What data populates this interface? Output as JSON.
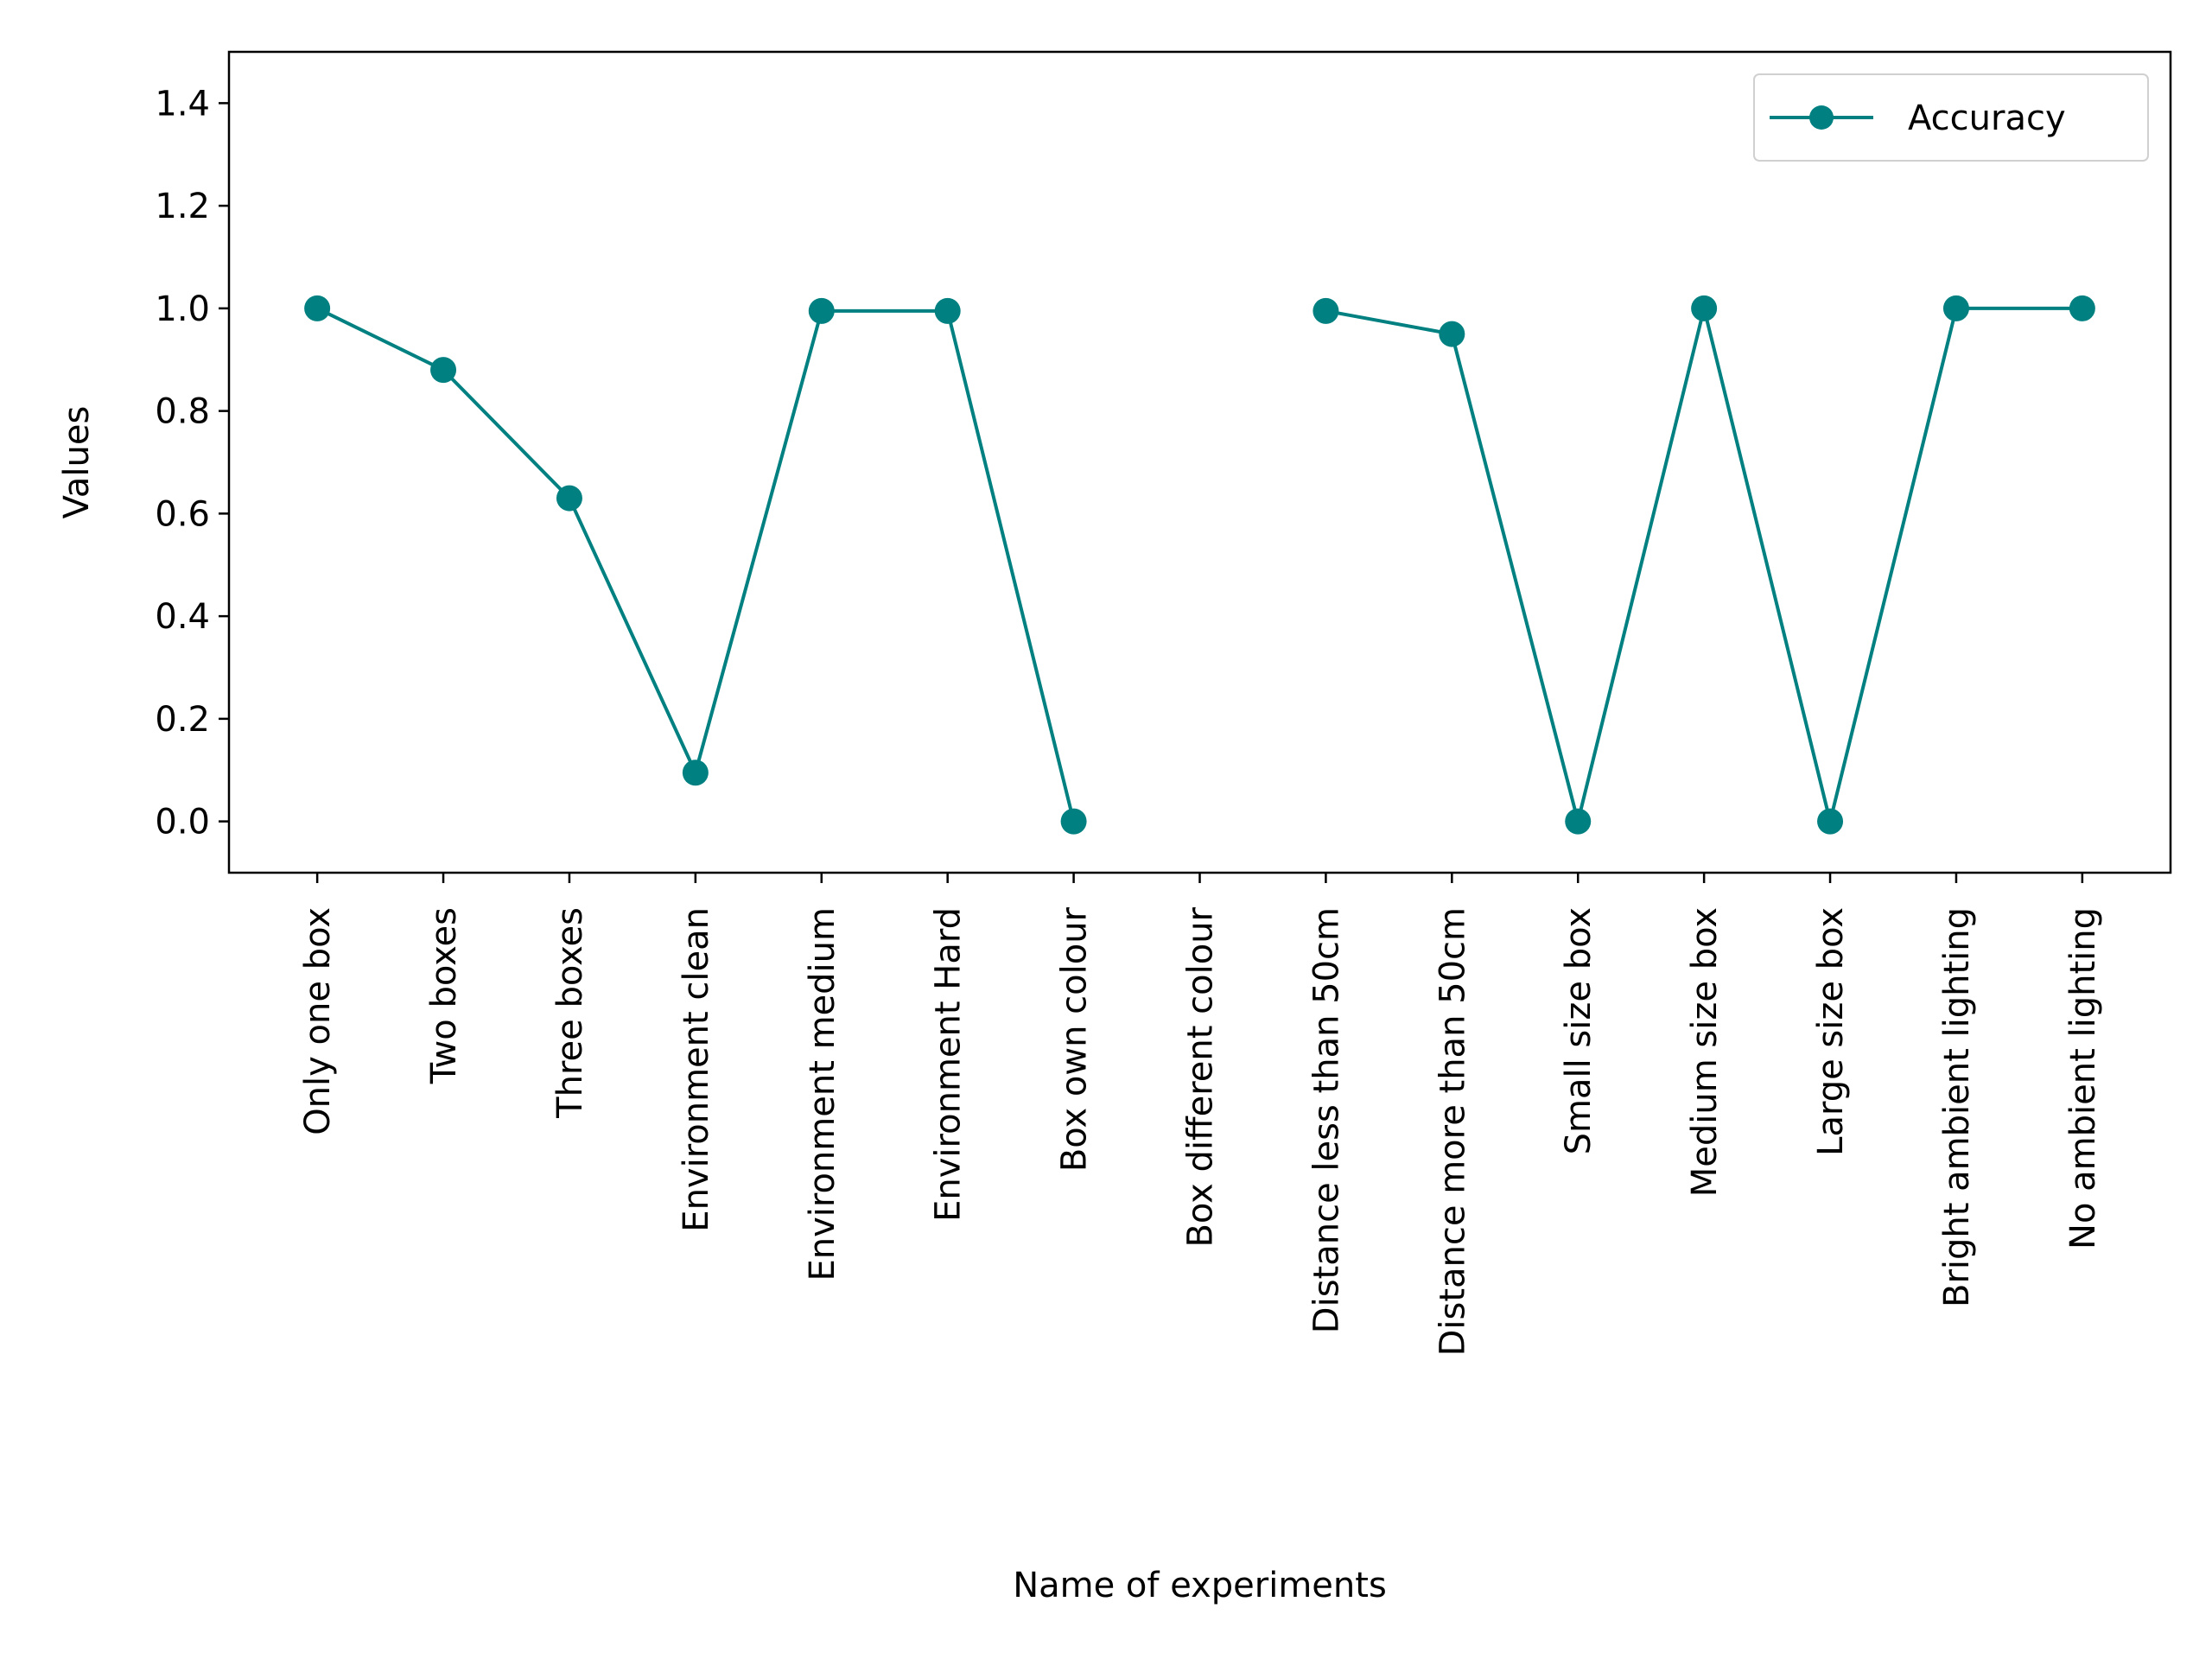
{
  "chart_data": {
    "type": "line",
    "title": "",
    "xlabel": "Name of experiments",
    "ylabel": "Values",
    "ylim": [
      -0.1,
      1.5
    ],
    "yticks": [
      0.0,
      0.2,
      0.4,
      0.6,
      0.8,
      1.0,
      1.2,
      1.4
    ],
    "ytick_labels": [
      "0.0",
      "0.2",
      "0.4",
      "0.6",
      "0.8",
      "1.0",
      "1.2",
      "1.4"
    ],
    "grid": false,
    "legend": {
      "placement": "top-right"
    },
    "categories": [
      "Only one box",
      "Two boxes",
      "Three boxes",
      "Environment clean",
      "Environment medium",
      "Environment Hard",
      "Box own colour",
      "Box different colour",
      "Distance less than 50cm",
      "Distance more than 50cm",
      "Small size box",
      "Medium size box",
      "Large size box",
      "Bright ambient lighting",
      "No  ambient lighting"
    ],
    "series": [
      {
        "name": "Accuracy",
        "color": "#008080",
        "marker": "circle",
        "values": [
          1.0,
          0.88,
          0.63,
          0.095,
          0.995,
          0.995,
          0.0,
          null,
          0.995,
          0.95,
          0.0,
          1.0,
          0.0,
          1.0,
          1.0
        ]
      }
    ]
  }
}
